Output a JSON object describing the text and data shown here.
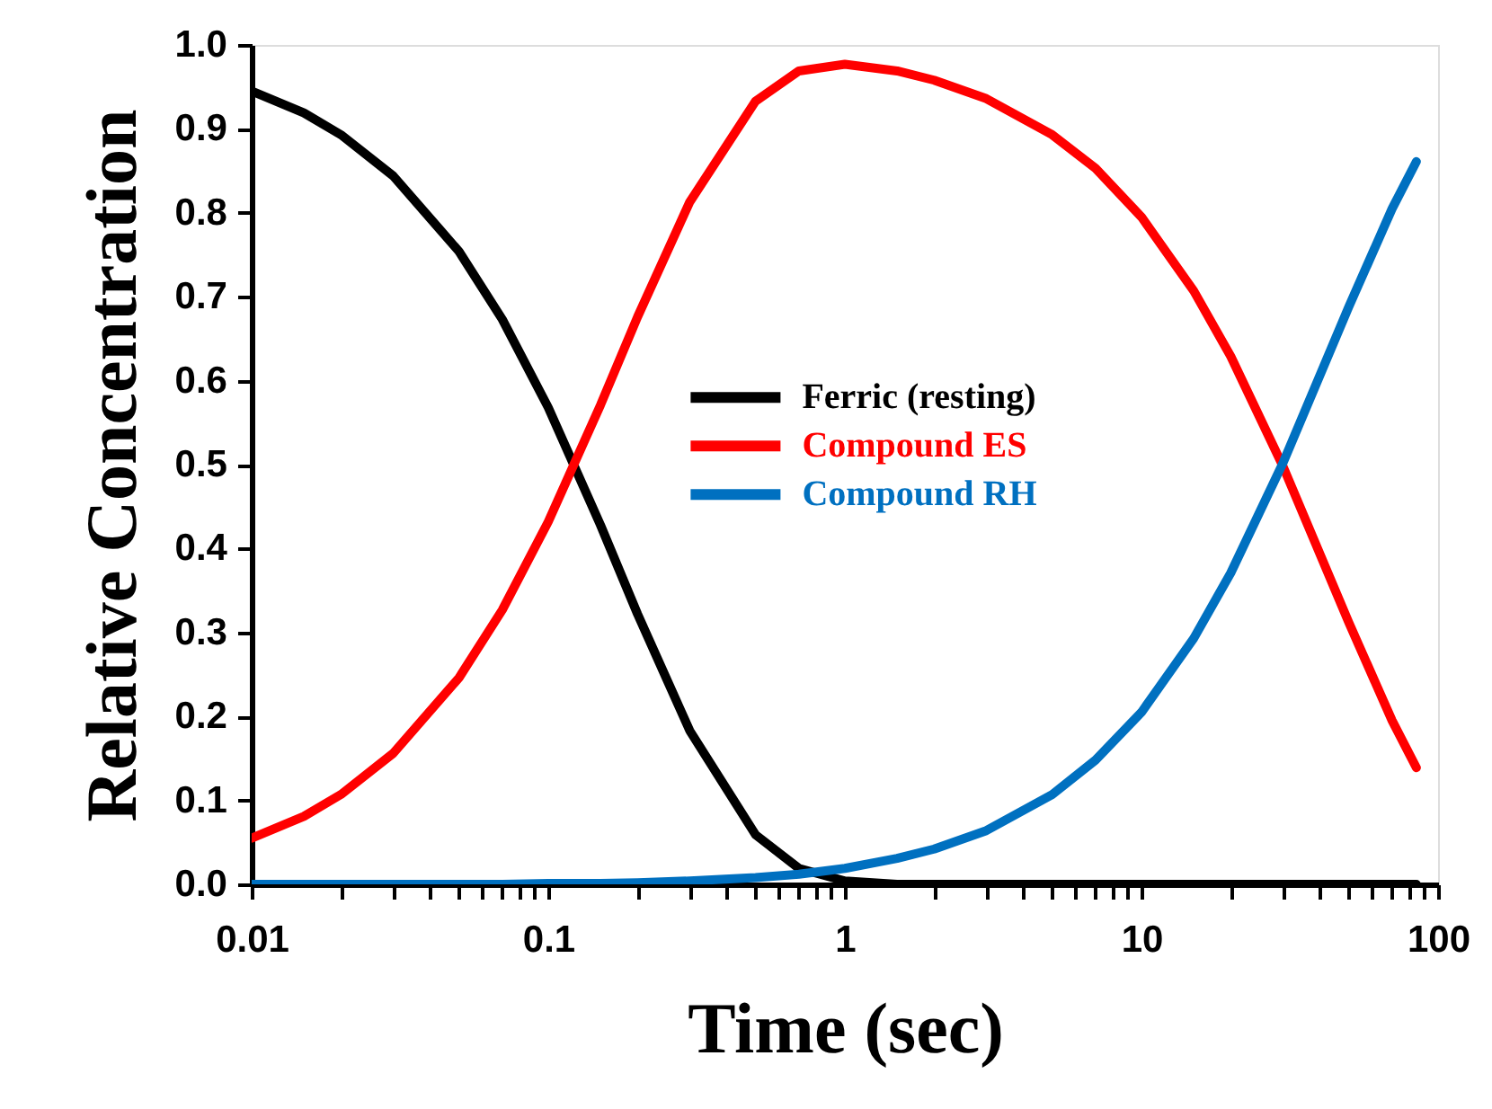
{
  "chart_data": {
    "type": "line",
    "xlabel": "Time (sec)",
    "ylabel": "Relative Concentration",
    "x": [
      0.01,
      0.015,
      0.02,
      0.03,
      0.05,
      0.07,
      0.1,
      0.15,
      0.2,
      0.3,
      0.5,
      0.7,
      1,
      1.5,
      2,
      3,
      5,
      7,
      10,
      15,
      20,
      30,
      50,
      70,
      84.5
    ],
    "series": [
      {
        "name": "Ferric (resting)",
        "color": "#000000",
        "values": [
          0.945,
          0.919,
          0.893,
          0.844,
          0.754,
          0.673,
          0.568,
          0.428,
          0.322,
          0.183,
          0.059,
          0.019,
          0.004,
          0.0,
          0.0,
          0.0,
          0.0,
          0.0,
          0.0,
          0.0,
          0.0,
          0.0,
          0.0,
          0.0,
          0.0
        ]
      },
      {
        "name": "Compound ES",
        "color": "#ff0000",
        "values": [
          0.055,
          0.081,
          0.107,
          0.156,
          0.246,
          0.327,
          0.432,
          0.571,
          0.676,
          0.813,
          0.933,
          0.969,
          0.977,
          0.969,
          0.958,
          0.936,
          0.893,
          0.853,
          0.795,
          0.707,
          0.629,
          0.498,
          0.312,
          0.195,
          0.139
        ]
      },
      {
        "name": "Compound RH",
        "color": "#0070c0",
        "values": [
          0.0,
          0.0,
          0.0,
          0.0,
          0.0,
          0.0,
          0.001,
          0.001,
          0.002,
          0.004,
          0.008,
          0.012,
          0.019,
          0.031,
          0.042,
          0.064,
          0.107,
          0.148,
          0.205,
          0.293,
          0.371,
          0.502,
          0.688,
          0.805,
          0.861
        ]
      }
    ],
    "log": "x",
    "xlim": [
      0.01,
      100
    ],
    "xticks": [
      0.01,
      {
        "value": 0.02,
        "label": null
      },
      {
        "value": 0.03,
        "label": null
      },
      {
        "value": 0.04,
        "label": null
      },
      {
        "value": 0.05,
        "label": null
      },
      {
        "value": 0.06,
        "label": null
      },
      {
        "value": 0.07,
        "label": null
      },
      {
        "value": 0.08,
        "label": null
      },
      {
        "value": 0.09,
        "label": null
      },
      0.1,
      {
        "value": 0.2,
        "label": null
      },
      {
        "value": 0.3,
        "label": null
      },
      {
        "value": 0.4,
        "label": null
      },
      {
        "value": 0.5,
        "label": null
      },
      {
        "value": 0.6,
        "label": null
      },
      {
        "value": 0.7,
        "label": null
      },
      {
        "value": 0.8,
        "label": null
      },
      {
        "value": 0.9,
        "label": null
      },
      1,
      {
        "value": 2,
        "label": null
      },
      {
        "value": 3,
        "label": null
      },
      {
        "value": 4,
        "label": null
      },
      {
        "value": 5,
        "label": null
      },
      {
        "value": 6,
        "label": null
      },
      {
        "value": 7,
        "label": null
      },
      {
        "value": 8,
        "label": null
      },
      {
        "value": 9,
        "label": null
      },
      10,
      {
        "value": 20,
        "label": null
      },
      {
        "value": 30,
        "label": null
      },
      {
        "value": 40,
        "label": null
      },
      {
        "value": 50,
        "label": null
      },
      {
        "value": 60,
        "label": null
      },
      {
        "value": 70,
        "label": null
      },
      {
        "value": 80,
        "label": null
      },
      {
        "value": 90,
        "label": null
      },
      100
    ],
    "ylim": [
      0,
      1
    ],
    "yticks": [
      {
        "value": 0,
        "label": "0.0"
      },
      0.1,
      0.2,
      0.3,
      0.4,
      0.5,
      0.6,
      0.7,
      0.8,
      0.9,
      {
        "value": 1,
        "label": "1.0"
      }
    ],
    "grid": false,
    "legend": "center",
    "marker": "none",
    "line_style": "solid"
  }
}
